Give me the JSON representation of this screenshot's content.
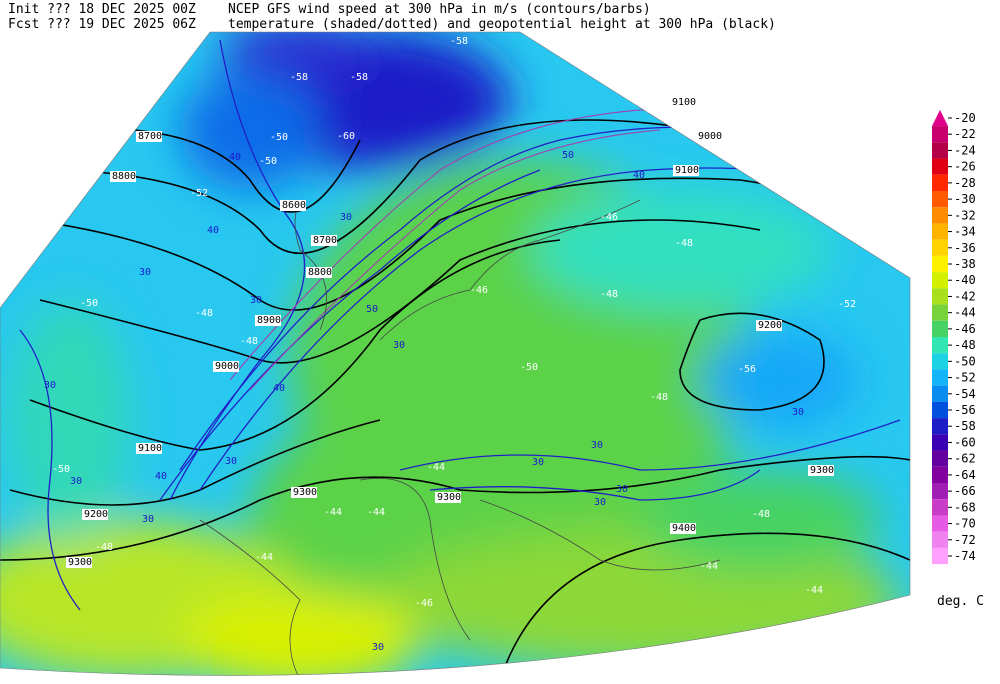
{
  "header": {
    "line1_left": "Init  ??? 18 DEC 2025 00Z",
    "line1_right": "NCEP GFS wind speed at 300 hPa in m/s (contours/barbs)",
    "line2_left": "Fcst ??? 19 DEC 2025 06Z",
    "line2_right": "temperature (shaded/dotted) and geopotential height at 300 hPa (black)"
  },
  "map": {
    "height_labels": [
      "8700",
      "8800",
      "8600",
      "8700",
      "8800",
      "8900",
      "9000",
      "9100",
      "9200",
      "9300",
      "9300",
      "9300",
      "9300",
      "9400",
      "9200",
      "9100",
      "9000",
      "9100"
    ],
    "wind_labels": [
      "40",
      "40",
      "30",
      "30",
      "30",
      "30",
      "40",
      "30",
      "40",
      "30",
      "30",
      "30",
      "30",
      "30",
      "30",
      "30",
      "40",
      "50",
      "50",
      "30",
      "30"
    ],
    "temp_labels": [
      "-50",
      "-58",
      "-58",
      "-58",
      "-50",
      "-52",
      "-50",
      "-48",
      "-48",
      "-46",
      "-48",
      "-50",
      "-48",
      "-48",
      "-46",
      "-44",
      "-44",
      "-44",
      "-44",
      "-46",
      "-44",
      "-48",
      "-52",
      "-56",
      "-50",
      "-60",
      "-44",
      "-48"
    ]
  },
  "legend": {
    "labels": [
      -20,
      -22,
      -24,
      -26,
      -28,
      -30,
      -32,
      -34,
      -36,
      -38,
      -40,
      -42,
      -44,
      -46,
      -48,
      -50,
      -52,
      -54,
      -56,
      -58,
      -60,
      -62,
      -64,
      -66,
      -68,
      -70,
      -72,
      -74
    ],
    "colors": [
      "#e0008c",
      "#c8006e",
      "#b40046",
      "#e00014",
      "#ff2800",
      "#ff5a00",
      "#ff8c00",
      "#ffb400",
      "#ffd200",
      "#fff000",
      "#d2f000",
      "#a8e01e",
      "#78d23c",
      "#46d264",
      "#32e6b4",
      "#1ed2e6",
      "#14b4f8",
      "#0a8cf0",
      "#0050e0",
      "#1e1ec8",
      "#3c00b4",
      "#6400a0",
      "#8200a0",
      "#a01eb4",
      "#c83cc8",
      "#e65ae6",
      "#f082f0",
      "#ffa0ff"
    ],
    "unit": "deg. C"
  }
}
